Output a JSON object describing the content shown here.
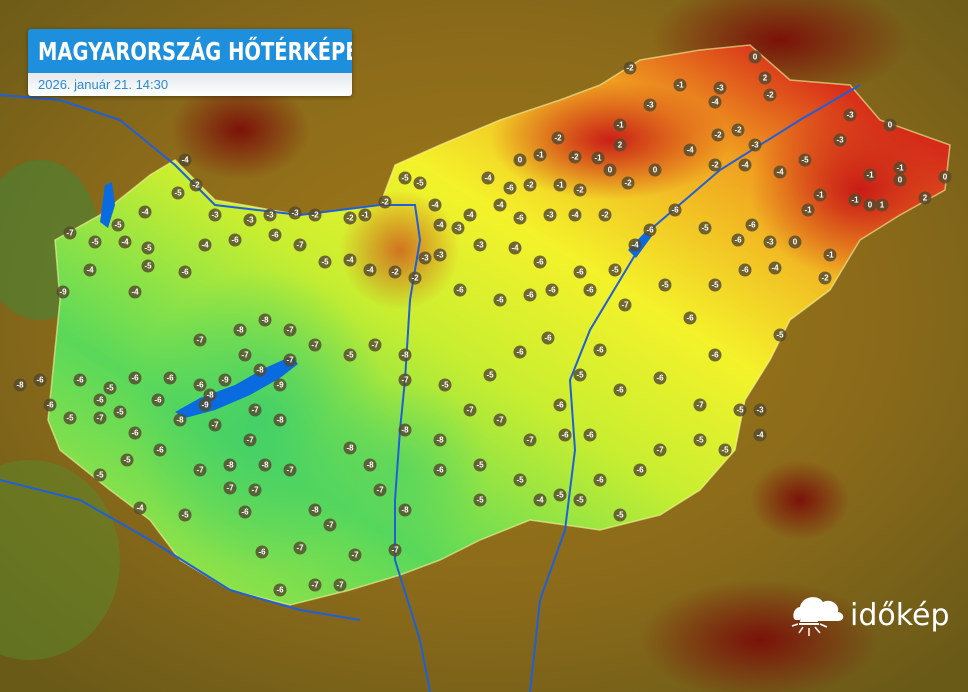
{
  "header": {
    "title": "MAGYARORSZÁG HŐTÉRKÉPE",
    "datetime": "2026. január 21. 14:30"
  },
  "brand": {
    "name": "időkép",
    "icon": "cloud-sun-icon"
  },
  "colors": {
    "title_bg": "#1e8fdc",
    "river": "#1f5fd8",
    "cold": "#3fd26a",
    "mild": "#f2f22a",
    "warm": "#d9261a"
  },
  "map": {
    "region": "Hungary",
    "unit": "°C",
    "station_temperatures": [
      0,
      2,
      -2,
      -2,
      -1,
      -3,
      -3,
      -4,
      -1,
      2,
      -1,
      -1,
      0,
      -2,
      -2,
      0,
      -2,
      0,
      -4,
      -2,
      -2,
      -3,
      -4,
      -2,
      -4,
      -5,
      -3,
      -3,
      0,
      -1,
      -1,
      0,
      2,
      0,
      -1,
      -1,
      0,
      1,
      -1,
      0,
      -1,
      -2,
      -4,
      -3,
      -6,
      -6,
      -5,
      -6,
      -6,
      -4,
      -5,
      -6,
      -6,
      -4,
      -3,
      -3,
      -4,
      -5,
      -5,
      -2,
      -1,
      -2,
      -2,
      -3,
      -3,
      -3,
      -3,
      -2,
      -5,
      -4,
      -5,
      -7,
      -5,
      -4,
      -5,
      -5,
      -4,
      -9,
      -4,
      -6,
      -4,
      -6,
      -6,
      -7,
      -5,
      -4,
      -4,
      -2,
      -2,
      -3,
      -3,
      -6,
      -6,
      -6,
      -6,
      -6,
      -7,
      -5,
      -6,
      -5,
      -6,
      -5,
      -6,
      -6,
      -6,
      -5,
      -6,
      -6,
      -6,
      -5,
      -5,
      -7,
      -8,
      -7,
      -5,
      -7,
      -7,
      -8,
      -8,
      -7,
      -6,
      -6,
      -6,
      -5,
      -6,
      -6,
      -8,
      -6,
      -5,
      -7,
      -6,
      -5,
      -6,
      -6,
      -6,
      -5,
      -5,
      -4,
      -5,
      -7,
      -8,
      -8,
      -7,
      -7,
      -6,
      -7,
      -8,
      -7,
      -6,
      -6,
      -7,
      -7,
      -7,
      -7,
      -8,
      -8,
      -7,
      -8,
      -7,
      -8,
      -8,
      -6,
      -5,
      -5,
      -5,
      -4,
      -5,
      -5,
      -6,
      -6,
      -7,
      -5,
      -7,
      -5,
      -3,
      -4,
      -5,
      -5,
      -6,
      -7,
      -7,
      -7,
      -6,
      -6,
      -8,
      -7,
      -7,
      -7,
      -8,
      -9,
      -8,
      -9,
      -7,
      -8,
      -7,
      -9,
      -4,
      -4,
      -4,
      -4,
      -6,
      -3,
      -4,
      -2,
      -4,
      -6,
      -2,
      -1,
      -2
    ]
  }
}
